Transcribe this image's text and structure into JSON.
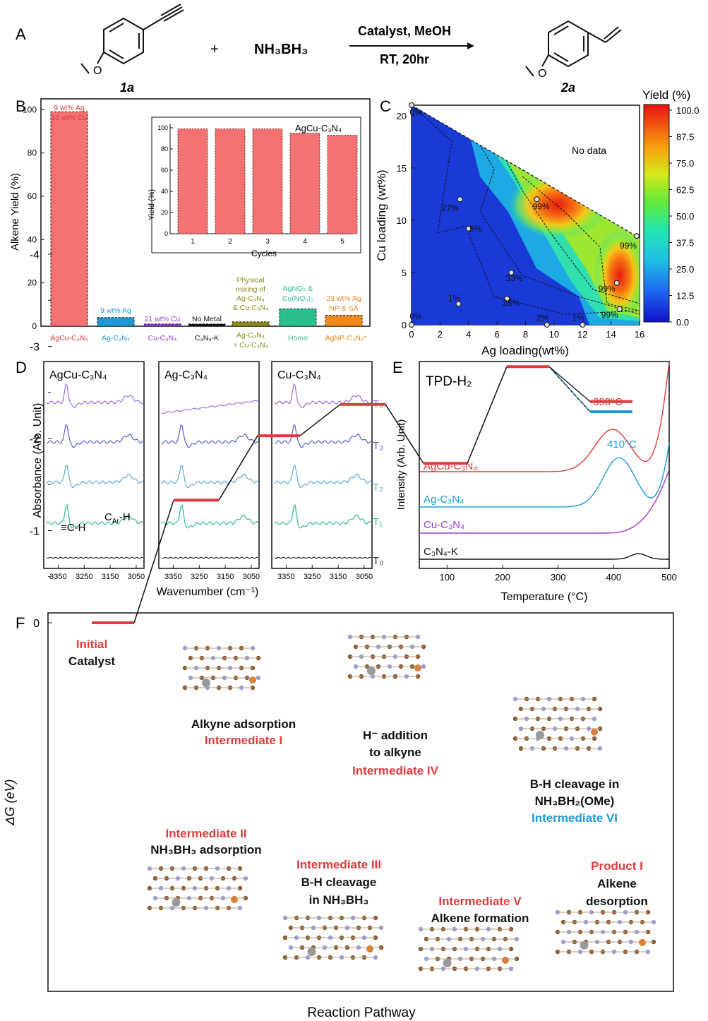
{
  "colors": {
    "red": "#e23b3b",
    "bar_red": "#f47272",
    "blue": "#1e9bd7",
    "purple": "#9b3bd6",
    "black": "#111111",
    "olive": "#8c8c1d",
    "green": "#2cbf8e",
    "orange": "#f08a1d",
    "ir": [
      "#9b70e0",
      "#5560d8",
      "#5fa8df",
      "#33be8d",
      "#333333"
    ]
  },
  "panelA": {
    "label": "A",
    "reactant": "1a",
    "reagent": "NH₃BH₃",
    "conditions_top": "Catalyst, MeOH",
    "conditions_bottom": "RT, 20hr",
    "product": "2a",
    "plus": "+"
  },
  "panelB": {
    "label": "B",
    "ylabel": "Alkene Yield (%)",
    "inset": {
      "title": "AgCu-C₃N₄",
      "ylabel": "Yield (%)",
      "xlabel": "Cycles",
      "yticks": [
        "0",
        "20",
        "40",
        "60",
        "80",
        "100"
      ]
    },
    "annotations": {
      "c0": [
        "9 wt% Ag",
        "12 wt% Cu"
      ],
      "c1": [
        "9 wt% Ag"
      ],
      "c2": [
        "21 wt% Cu"
      ],
      "c3": [
        "No Metal"
      ],
      "c4": [
        "Physical",
        "mixing of",
        "Ag-C₃N₄",
        "& Cu-C₃N₄"
      ],
      "c5": [
        "AgNO₃ &",
        "Cu(NO₃)₂"
      ],
      "c6": [
        "23 wt% Ag",
        "NP & SA"
      ]
    },
    "xlabels": {
      "c0": "AgCu-C₃N₄",
      "c1": "Ag-C₃N₄",
      "c2": "Cu-C₃N₄",
      "c3": "C₃N₄-K",
      "c4a": "Ag-C₃N₄",
      "c4b": "+ Cu-C₃N₄",
      "c5": "Homo",
      "c6": "AgNP-C₃N₄*"
    }
  },
  "panelC": {
    "label": "C",
    "xlabel": "Ag loading(wt%)",
    "ylabel": "Cu loading (wt%)",
    "no_data": "No data",
    "cbar_title": "Yield (%)",
    "cbar_ticks": [
      "100.0",
      "87.5",
      "75.0",
      "62.5",
      "50.0",
      "37.5",
      "25.0",
      "12.5",
      "0.0"
    ],
    "point_labels": [
      "0%",
      "27%",
      "5%",
      "99%",
      "99%",
      "33%",
      "99%",
      "1%",
      "25%",
      "99%",
      "0%",
      "2%",
      "1%"
    ]
  },
  "panelD": {
    "label": "D",
    "titles": [
      "AgCu-C₃N₄",
      "Ag-C₃N₄",
      "Cu-C₃N₄"
    ],
    "ylabel": "Absorbance (Arb. Unit)",
    "xlabel": "Wavenumber (cm⁻¹)",
    "traces": [
      "T₄",
      "T₃",
      "T₂",
      "T₁",
      "T₀"
    ],
    "peak1": "≡C-H",
    "peak2": "C",
    "peak2_sub": "Ar",
    "peak2_end": "-H"
  },
  "panelE": {
    "label": "E",
    "title": "TPD-H₂",
    "ylabel": "Intensity (Arb. Unit)",
    "xlabel": "Temperature (°C)",
    "series": [
      "AgCu-C₃N₄",
      "Ag-C₃N₄",
      "Cu-C₃N₄",
      "C₃N₄-K"
    ],
    "peak_labels": [
      "398°C",
      "410°C"
    ]
  },
  "panelF": {
    "label": "F",
    "ylabel": "ΔG (eV)",
    "xlabel": "Reaction Pathway",
    "yticks": [
      "0",
      "-1",
      "-2",
      "-3",
      "-4"
    ],
    "labels": {
      "initial_red": "Initial",
      "initial_black": "Catalyst",
      "i1_black": "Alkyne adsorption",
      "i1_red": "Intermediate I",
      "i2_red": "Intermediate II",
      "i2_black": "NH₃BH₃ adsorption",
      "i3_red": "Intermediate III",
      "i3_black1": "B-H cleavage",
      "i3_black2": "in NH₃BH₃",
      "i4_black1": "H⁻ addition",
      "i4_black2": "to alkyne",
      "i4_red": "Intermediate IV",
      "i5_red": "Intermediate V",
      "i5_black": "Alkene formation",
      "i6_black1": "B-H cleavage in",
      "i6_black2": "NH₃BH₂(OMe)",
      "i6_blue": "Intermediate VI",
      "p1_red": "Product I",
      "p1_black1": "Alkene",
      "p1_black2": "desorption"
    }
  },
  "chart_data": [
    {
      "type": "bar",
      "title": "",
      "ylabel": "Alkene Yield (%)",
      "ylim": [
        0,
        105
      ],
      "categories": [
        "AgCu-C3N4",
        "Ag-C3N4",
        "Cu-C3N4",
        "C3N4-K",
        "Ag-C3N4 + Cu-C3N4",
        "Homo",
        "AgNP-C3N4*"
      ],
      "values": [
        99,
        4,
        1,
        1,
        2,
        8,
        5
      ]
    },
    {
      "type": "bar",
      "title": "AgCu-C3N4",
      "xlabel": "Cycles",
      "ylabel": "Yield (%)",
      "ylim": [
        0,
        100
      ],
      "categories": [
        "1",
        "2",
        "3",
        "4",
        "5"
      ],
      "values": [
        99,
        99,
        99,
        95,
        93
      ]
    },
    {
      "type": "heatmap",
      "xlabel": "Ag loading(wt%)",
      "ylabel": "Cu loading (wt%)",
      "xlim": [
        0,
        16
      ],
      "ylim": [
        0,
        21
      ],
      "colorbar": {
        "title": "Yield (%)",
        "range": [
          0,
          100
        ]
      },
      "points": [
        {
          "x": 0,
          "y": 21,
          "yield": 0
        },
        {
          "x": 3.4,
          "y": 12,
          "yield": 27
        },
        {
          "x": 4,
          "y": 9.2,
          "yield": 5
        },
        {
          "x": 8.8,
          "y": 12,
          "yield": 99
        },
        {
          "x": 15.8,
          "y": 8.5,
          "yield": 99
        },
        {
          "x": 7,
          "y": 5,
          "yield": 33
        },
        {
          "x": 14.4,
          "y": 4,
          "yield": 99
        },
        {
          "x": 3.3,
          "y": 2,
          "yield": 1
        },
        {
          "x": 6.7,
          "y": 2.5,
          "yield": 25
        },
        {
          "x": 14.6,
          "y": 1.5,
          "yield": 99
        },
        {
          "x": 0,
          "y": 0,
          "yield": 0
        },
        {
          "x": 9.5,
          "y": 0,
          "yield": 2
        },
        {
          "x": 12,
          "y": 0,
          "yield": 1
        }
      ]
    },
    {
      "type": "line",
      "title": "",
      "xlabel": "Wavenumber (cm-1)",
      "ylabel": "Absorbance (Arb. Unit)",
      "xlim": [
        3400,
        3020
      ],
      "xticks": [
        3350,
        3250,
        3150,
        3050
      ],
      "series": [
        {
          "name": "T4"
        },
        {
          "name": "T3"
        },
        {
          "name": "T2"
        },
        {
          "name": "T1"
        },
        {
          "name": "T0"
        }
      ]
    },
    {
      "type": "line",
      "title": "TPD-H2",
      "xlabel": "Temperature (°C)",
      "ylabel": "Intensity (Arb. Unit)",
      "xlim": [
        50,
        500
      ],
      "xticks": [
        100,
        200,
        300,
        400,
        500
      ],
      "series": [
        {
          "name": "AgCu-C3N4",
          "peak_c": 398
        },
        {
          "name": "Ag-C3N4",
          "peak_c": 410
        },
        {
          "name": "Cu-C3N4"
        },
        {
          "name": "C3N4-K"
        }
      ]
    },
    {
      "type": "line",
      "title": "",
      "xlabel": "Reaction Pathway",
      "ylabel": "ΔG (eV)",
      "ylim": [
        -4,
        0
      ],
      "states": [
        "Initial Catalyst",
        "Intermediate I",
        "Intermediate II",
        "Intermediate III",
        "Intermediate IV",
        "Intermediate V",
        "Intermediate VI",
        "Product I"
      ],
      "values": [
        0.0,
        -1.33,
        -2.03,
        -2.37,
        -1.73,
        -2.78,
        -2.29,
        -2.4
      ]
    }
  ]
}
